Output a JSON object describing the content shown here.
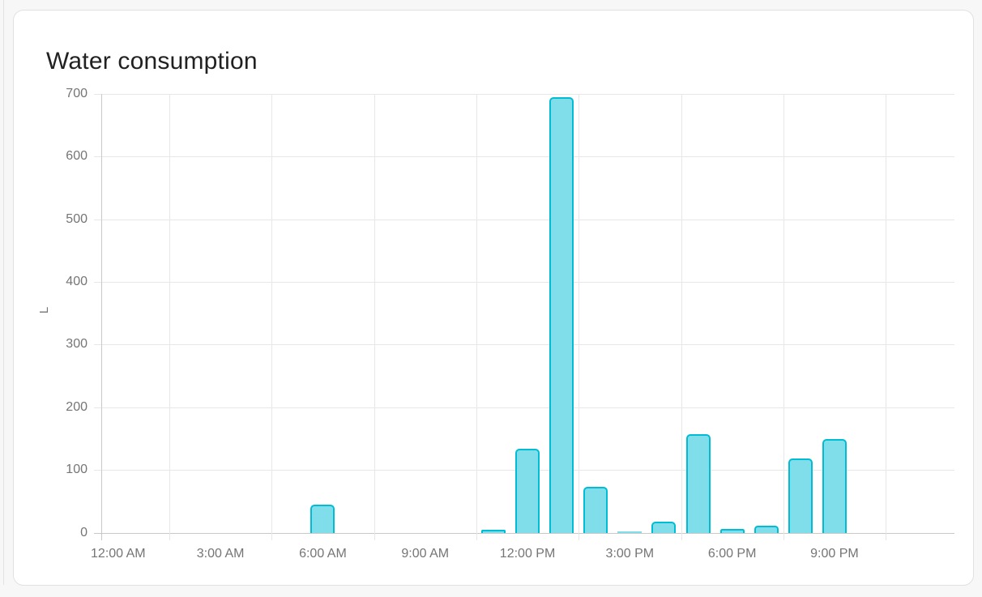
{
  "card": {
    "title": "Water consumption"
  },
  "chart_data": {
    "type": "bar",
    "title": "Water consumption",
    "xlabel": "",
    "ylabel": "L",
    "unit": "L",
    "legend_position": "none",
    "grid": true,
    "y_axis": {
      "min": 0,
      "max": 700,
      "tick_step": 100,
      "ticks": [
        0,
        100,
        200,
        300,
        400,
        500,
        600,
        700
      ]
    },
    "x_axis": {
      "tick_labels": [
        "12:00 AM",
        "3:00 AM",
        "6:00 AM",
        "9:00 AM",
        "12:00 PM",
        "3:00 PM",
        "6:00 PM",
        "9:00 PM"
      ],
      "tick_label_hours": [
        0,
        3,
        6,
        9,
        12,
        15,
        18,
        21
      ],
      "gridline_hours": [
        2,
        5,
        8,
        11,
        14,
        17,
        20,
        23
      ],
      "domain_hours": [
        0,
        25
      ]
    },
    "series": [
      {
        "name": "Water consumption",
        "unit": "L",
        "fill_color": "#80deea",
        "border_color": "#00bcd4",
        "points": [
          {
            "hour": 6,
            "value": 45
          },
          {
            "hour": 11,
            "value": 5
          },
          {
            "hour": 12,
            "value": 134
          },
          {
            "hour": 13,
            "value": 695
          },
          {
            "hour": 14,
            "value": 73
          },
          {
            "hour": 15,
            "value": 2
          },
          {
            "hour": 16,
            "value": 17
          },
          {
            "hour": 17,
            "value": 157
          },
          {
            "hour": 18,
            "value": 6
          },
          {
            "hour": 19,
            "value": 11
          },
          {
            "hour": 20,
            "value": 118
          },
          {
            "hour": 21,
            "value": 150
          }
        ]
      }
    ],
    "colors": {
      "bar_fill": "#80deea",
      "bar_border": "#00bcd4",
      "gridline": "#e7e7e7",
      "axis_line": "#c9c9c9",
      "tick_text": "#757575",
      "title_text": "#212121",
      "card_bg": "#ffffff",
      "page_bg": "#f7f7f7",
      "card_border": "#e1e1e1"
    }
  }
}
